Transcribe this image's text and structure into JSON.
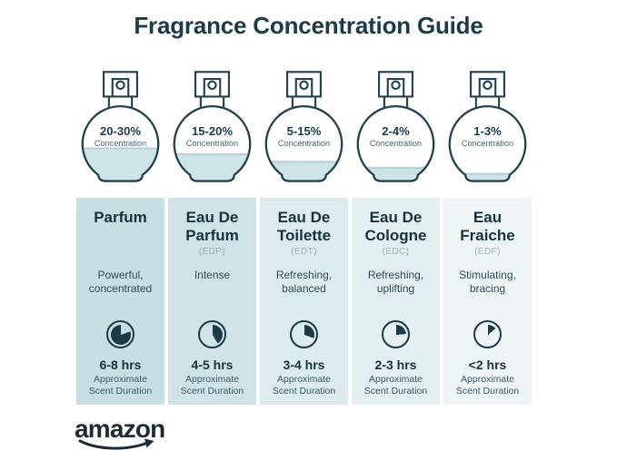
{
  "title": "Fragrance Concentration Guide",
  "colors": {
    "dark_text": "#1c3a47",
    "logo_color": "#1d2b36",
    "liquid": "#cfe4e7",
    "liquid_surface": "#b6d3d7",
    "column_backgrounds": [
      "#c7dee2",
      "#d0e4e7",
      "#dcebed",
      "#e4eff1",
      "#eff5f6"
    ]
  },
  "bottles": [
    {
      "percent": "20-30%",
      "label": "Concentration",
      "fill_percent": 45
    },
    {
      "percent": "15-20%",
      "label": "Concentration",
      "fill_percent": 37
    },
    {
      "percent": "5-15%",
      "label": "Concentration",
      "fill_percent": 27
    },
    {
      "percent": "2-4%",
      "label": "Concentration",
      "fill_percent": 19
    },
    {
      "percent": "1-3%",
      "label": "Concentration",
      "fill_percent": 11
    }
  ],
  "columns": [
    {
      "title_line1": "Parfum",
      "title_line2": "",
      "abbr": "",
      "desc_line1": "Powerful,",
      "desc_line2": "concentrated",
      "hours": "6-8 hrs",
      "clock": {
        "start_deg": 70,
        "end_deg": 360
      }
    },
    {
      "title_line1": "Eau De",
      "title_line2": "Parfum",
      "abbr": "(EDP)",
      "desc_line1": "Intense",
      "desc_line2": "",
      "hours": "4-5 hrs",
      "clock": {
        "start_deg": 0,
        "end_deg": 150
      }
    },
    {
      "title_line1": "Eau De",
      "title_line2": "Toilette",
      "abbr": "(EDT)",
      "desc_line1": "Refreshing,",
      "desc_line2": "balanced",
      "hours": "3-4 hrs",
      "clock": {
        "start_deg": 0,
        "end_deg": 110
      }
    },
    {
      "title_line1": "Eau De",
      "title_line2": "Cologne",
      "abbr": "(EDC)",
      "desc_line1": "Refreshing,",
      "desc_line2": "uplifting",
      "hours": "2-3 hrs",
      "clock": {
        "start_deg": 0,
        "end_deg": 85
      }
    },
    {
      "title_line1": "Eau",
      "title_line2": "Fraiche",
      "abbr": "(EDF)",
      "desc_line1": "Stimulating,",
      "desc_line2": "bracing",
      "hours": "<2 hrs",
      "clock": {
        "start_deg": 0,
        "end_deg": 50
      }
    }
  ],
  "duration_caption_line1": "Approximate",
  "duration_caption_line2": "Scent Duration",
  "brand": {
    "logo_text": "amazon"
  }
}
